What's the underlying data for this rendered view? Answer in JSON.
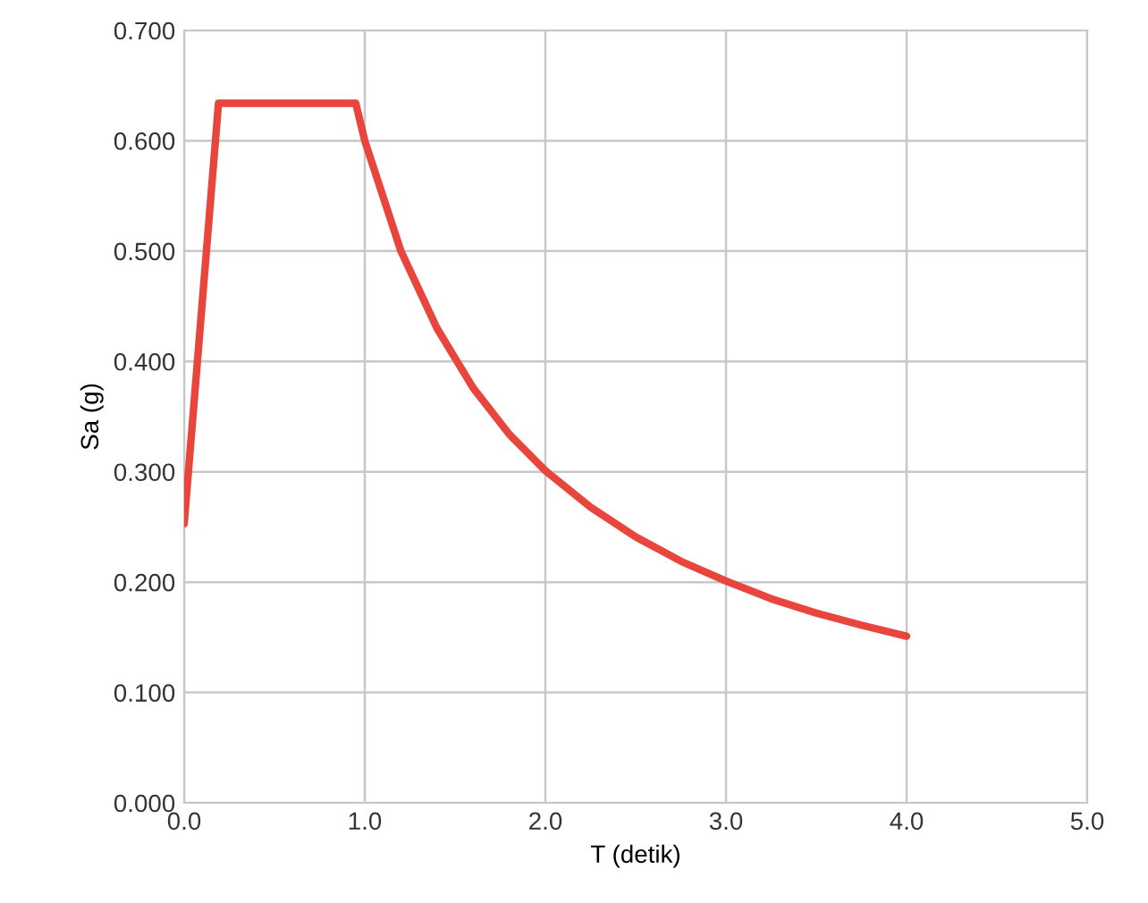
{
  "chart_data": {
    "type": "line",
    "xlabel": "T (detik)",
    "ylabel": "Sa (g)",
    "xlim": [
      0,
      5
    ],
    "ylim": [
      0,
      0.7
    ],
    "xticks": [
      {
        "value": 0,
        "label": "0.0"
      },
      {
        "value": 1,
        "label": "1.0"
      },
      {
        "value": 2,
        "label": "2.0"
      },
      {
        "value": 3,
        "label": "3.0"
      },
      {
        "value": 4,
        "label": "4.0"
      },
      {
        "value": 5,
        "label": "5.0"
      }
    ],
    "yticks": [
      {
        "value": 0,
        "label": "0.000"
      },
      {
        "value": 0.1,
        "label": "0.100"
      },
      {
        "value": 0.2,
        "label": "0.200"
      },
      {
        "value": 0.3,
        "label": "0.300"
      },
      {
        "value": 0.4,
        "label": "0.400"
      },
      {
        "value": 0.5,
        "label": "0.500"
      },
      {
        "value": 0.6,
        "label": "0.600"
      },
      {
        "value": 0.7,
        "label": "0.700"
      }
    ],
    "grid": true,
    "marker": "none",
    "line_style": "solid",
    "series": [
      {
        "color": "#e8453c",
        "x": [
          0,
          0.19,
          0.95,
          1.0,
          1.2,
          1.4,
          1.6,
          1.8,
          2.0,
          2.25,
          2.5,
          2.75,
          3.0,
          3.25,
          3.5,
          3.75,
          4.0
        ],
        "values": [
          0.253,
          0.634,
          0.634,
          0.6,
          0.5,
          0.43,
          0.376,
          0.334,
          0.301,
          0.268,
          0.241,
          0.219,
          0.201,
          0.185,
          0.172,
          0.161,
          0.151
        ]
      }
    ]
  }
}
